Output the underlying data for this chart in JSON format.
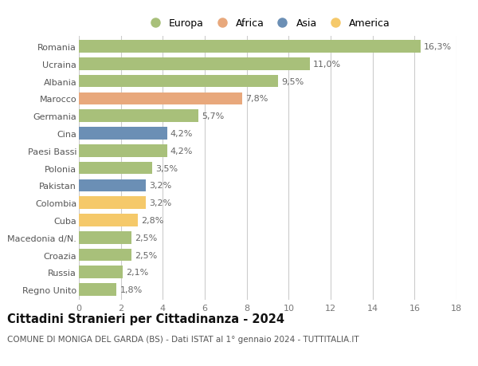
{
  "categories": [
    "Romania",
    "Ucraina",
    "Albania",
    "Marocco",
    "Germania",
    "Cina",
    "Paesi Bassi",
    "Polonia",
    "Pakistan",
    "Colombia",
    "Cuba",
    "Macedonia d/N.",
    "Croazia",
    "Russia",
    "Regno Unito"
  ],
  "values": [
    16.3,
    11.0,
    9.5,
    7.8,
    5.7,
    4.2,
    4.2,
    3.5,
    3.2,
    3.2,
    2.8,
    2.5,
    2.5,
    2.1,
    1.8
  ],
  "labels": [
    "16,3%",
    "11,0%",
    "9,5%",
    "7,8%",
    "5,7%",
    "4,2%",
    "4,2%",
    "3,5%",
    "3,2%",
    "3,2%",
    "2,8%",
    "2,5%",
    "2,5%",
    "2,1%",
    "1,8%"
  ],
  "colors": [
    "#a8c07a",
    "#a8c07a",
    "#a8c07a",
    "#e8a87c",
    "#a8c07a",
    "#6b8fb5",
    "#a8c07a",
    "#a8c07a",
    "#6b8fb5",
    "#f5c96a",
    "#f5c96a",
    "#a8c07a",
    "#a8c07a",
    "#a8c07a",
    "#a8c07a"
  ],
  "legend_labels": [
    "Europa",
    "Africa",
    "Asia",
    "America"
  ],
  "legend_colors": [
    "#a8c07a",
    "#e8a87c",
    "#6b8fb5",
    "#f5c96a"
  ],
  "title": "Cittadini Stranieri per Cittadinanza - 2024",
  "subtitle": "COMUNE DI MONIGA DEL GARDA (BS) - Dati ISTAT al 1° gennaio 2024 - TUTTITALIA.IT",
  "xlim": [
    0,
    18
  ],
  "xticks": [
    0,
    2,
    4,
    6,
    8,
    10,
    12,
    14,
    16,
    18
  ],
  "background_color": "#ffffff",
  "bar_height": 0.72,
  "grid_color": "#cccccc",
  "label_fontsize": 8,
  "tick_fontsize": 8,
  "title_fontsize": 10.5,
  "subtitle_fontsize": 7.5
}
